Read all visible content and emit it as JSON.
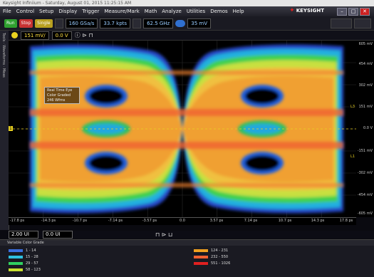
{
  "window": {
    "title": "Keysight Infiniium - Saturday, August 01, 2015 11:25:15 AM"
  },
  "brand": {
    "name": "KEYSIGHT",
    "tagline": ""
  },
  "menu": [
    "File",
    "Control",
    "Setup",
    "Display",
    "Trigger",
    "Measure/Mark",
    "Math",
    "Analyze",
    "Utilities",
    "Demos",
    "Help"
  ],
  "toolbar": {
    "run_label": "Run",
    "stop_label": "Stop",
    "single_label": "Single",
    "sample_rate": "160 GSa/s",
    "memory_depth": "33.7 kpts",
    "bandwidth": "62.5 GHz",
    "trigger_level": "35 mV"
  },
  "channel": {
    "scale": "151 mV/",
    "offset": "0.0 V"
  },
  "sidebar": {
    "label": "Tools · Waveforms · Meas"
  },
  "overlay": {
    "line1": "Real Time Eye",
    "line2": "Color Graded",
    "line3": "246 Wfms"
  },
  "y_ticks": [
    "605 mV",
    "454 mV",
    "302 mV",
    "151 mV",
    "0.0 V",
    "-151 mV",
    "-302 mV",
    "-454 mV",
    "-605 mV"
  ],
  "x_ticks": [
    "-17.8 ps",
    "-14.3 ps",
    "-10.7 ps",
    "-7.14 ps",
    "-3.57 ps",
    "0.0",
    "3.57 ps",
    "7.14 ps",
    "10.7 ps",
    "14.3 ps",
    "17.8 ps"
  ],
  "horizontal": {
    "scale": "2.00 UI",
    "position": "0.0 UI"
  },
  "markers": {
    "left_marker": "1",
    "right_marker_a": "L3",
    "right_marker_b": "L1"
  },
  "color_grade": {
    "title": "Variable Color Grade",
    "bins": [
      {
        "range": "1 - 14",
        "color": "#3a6fe0"
      },
      {
        "range": "15 - 28",
        "color": "#2ec0e0"
      },
      {
        "range": "29 - 57",
        "color": "#30d060"
      },
      {
        "range": "58 - 123",
        "color": "#c8e030"
      },
      {
        "range": "124 - 231",
        "color": "#f0a020"
      },
      {
        "range": "232 - 550",
        "color": "#f06030"
      },
      {
        "range": "551 - 1026",
        "color": "#e02020"
      }
    ]
  }
}
